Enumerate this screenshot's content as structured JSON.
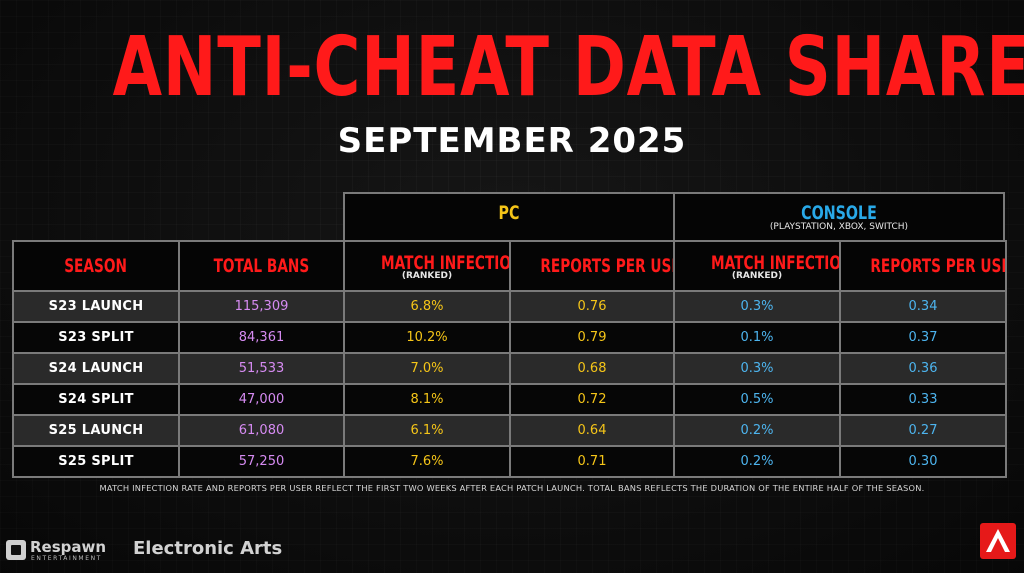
{
  "title": "ANTI-CHEAT DATA SHARE",
  "subtitle": "SEPTEMBER 2025",
  "groups": {
    "pc": {
      "label": "PC"
    },
    "console": {
      "label": "CONSOLE",
      "sublabel": "(PLAYSTATION, XBOX, SWITCH)"
    }
  },
  "columns": {
    "season": "SEASON",
    "total_bans": "TOTAL BANS",
    "pc_match_infection": "MATCH INFECTION RATE",
    "pc_match_infection_sub": "(RANKED)",
    "pc_reports": "REPORTS PER USER",
    "console_match_infection": "MATCH INFECTION RATE",
    "console_match_infection_sub": "(RANKED)",
    "console_reports": "REPORTS PER USER"
  },
  "rows": [
    {
      "season": "S23 LAUNCH",
      "total_bans": "115,309",
      "pc_infection": "6.8%",
      "pc_reports": "0.76",
      "console_infection": "0.3%",
      "console_reports": "0.34"
    },
    {
      "season": "S23 SPLIT",
      "total_bans": "84,361",
      "pc_infection": "10.2%",
      "pc_reports": "0.79",
      "console_infection": "0.1%",
      "console_reports": "0.37"
    },
    {
      "season": "S24 LAUNCH",
      "total_bans": "51,533",
      "pc_infection": "7.0%",
      "pc_reports": "0.68",
      "console_infection": "0.3%",
      "console_reports": "0.36"
    },
    {
      "season": "S24 SPLIT",
      "total_bans": "47,000",
      "pc_infection": "8.1%",
      "pc_reports": "0.72",
      "console_infection": "0.5%",
      "console_reports": "0.33"
    },
    {
      "season": "S25 LAUNCH",
      "total_bans": "61,080",
      "pc_infection": "6.1%",
      "pc_reports": "0.64",
      "console_infection": "0.2%",
      "console_reports": "0.27"
    },
    {
      "season": "S25 SPLIT",
      "total_bans": "57,250",
      "pc_infection": "7.6%",
      "pc_reports": "0.71",
      "console_infection": "0.2%",
      "console_reports": "0.30"
    }
  ],
  "footnote": "MATCH INFECTION RATE AND REPORTS PER USER REFLECT THE FIRST TWO WEEKS AFTER EACH PATCH LAUNCH.  TOTAL BANS REFLECTS THE DURATION OF THE ENTIRE HALF OF THE SEASON.",
  "logos": {
    "respawn": "Respawn",
    "respawn_tag": "ENTERTAINMENT",
    "ea": "Electronic Arts"
  },
  "colors": {
    "title_red": "#ff1a1a",
    "pc_yellow": "#f5c518",
    "console_blue": "#29a9e8",
    "bans_purple": "#d68bf2"
  }
}
